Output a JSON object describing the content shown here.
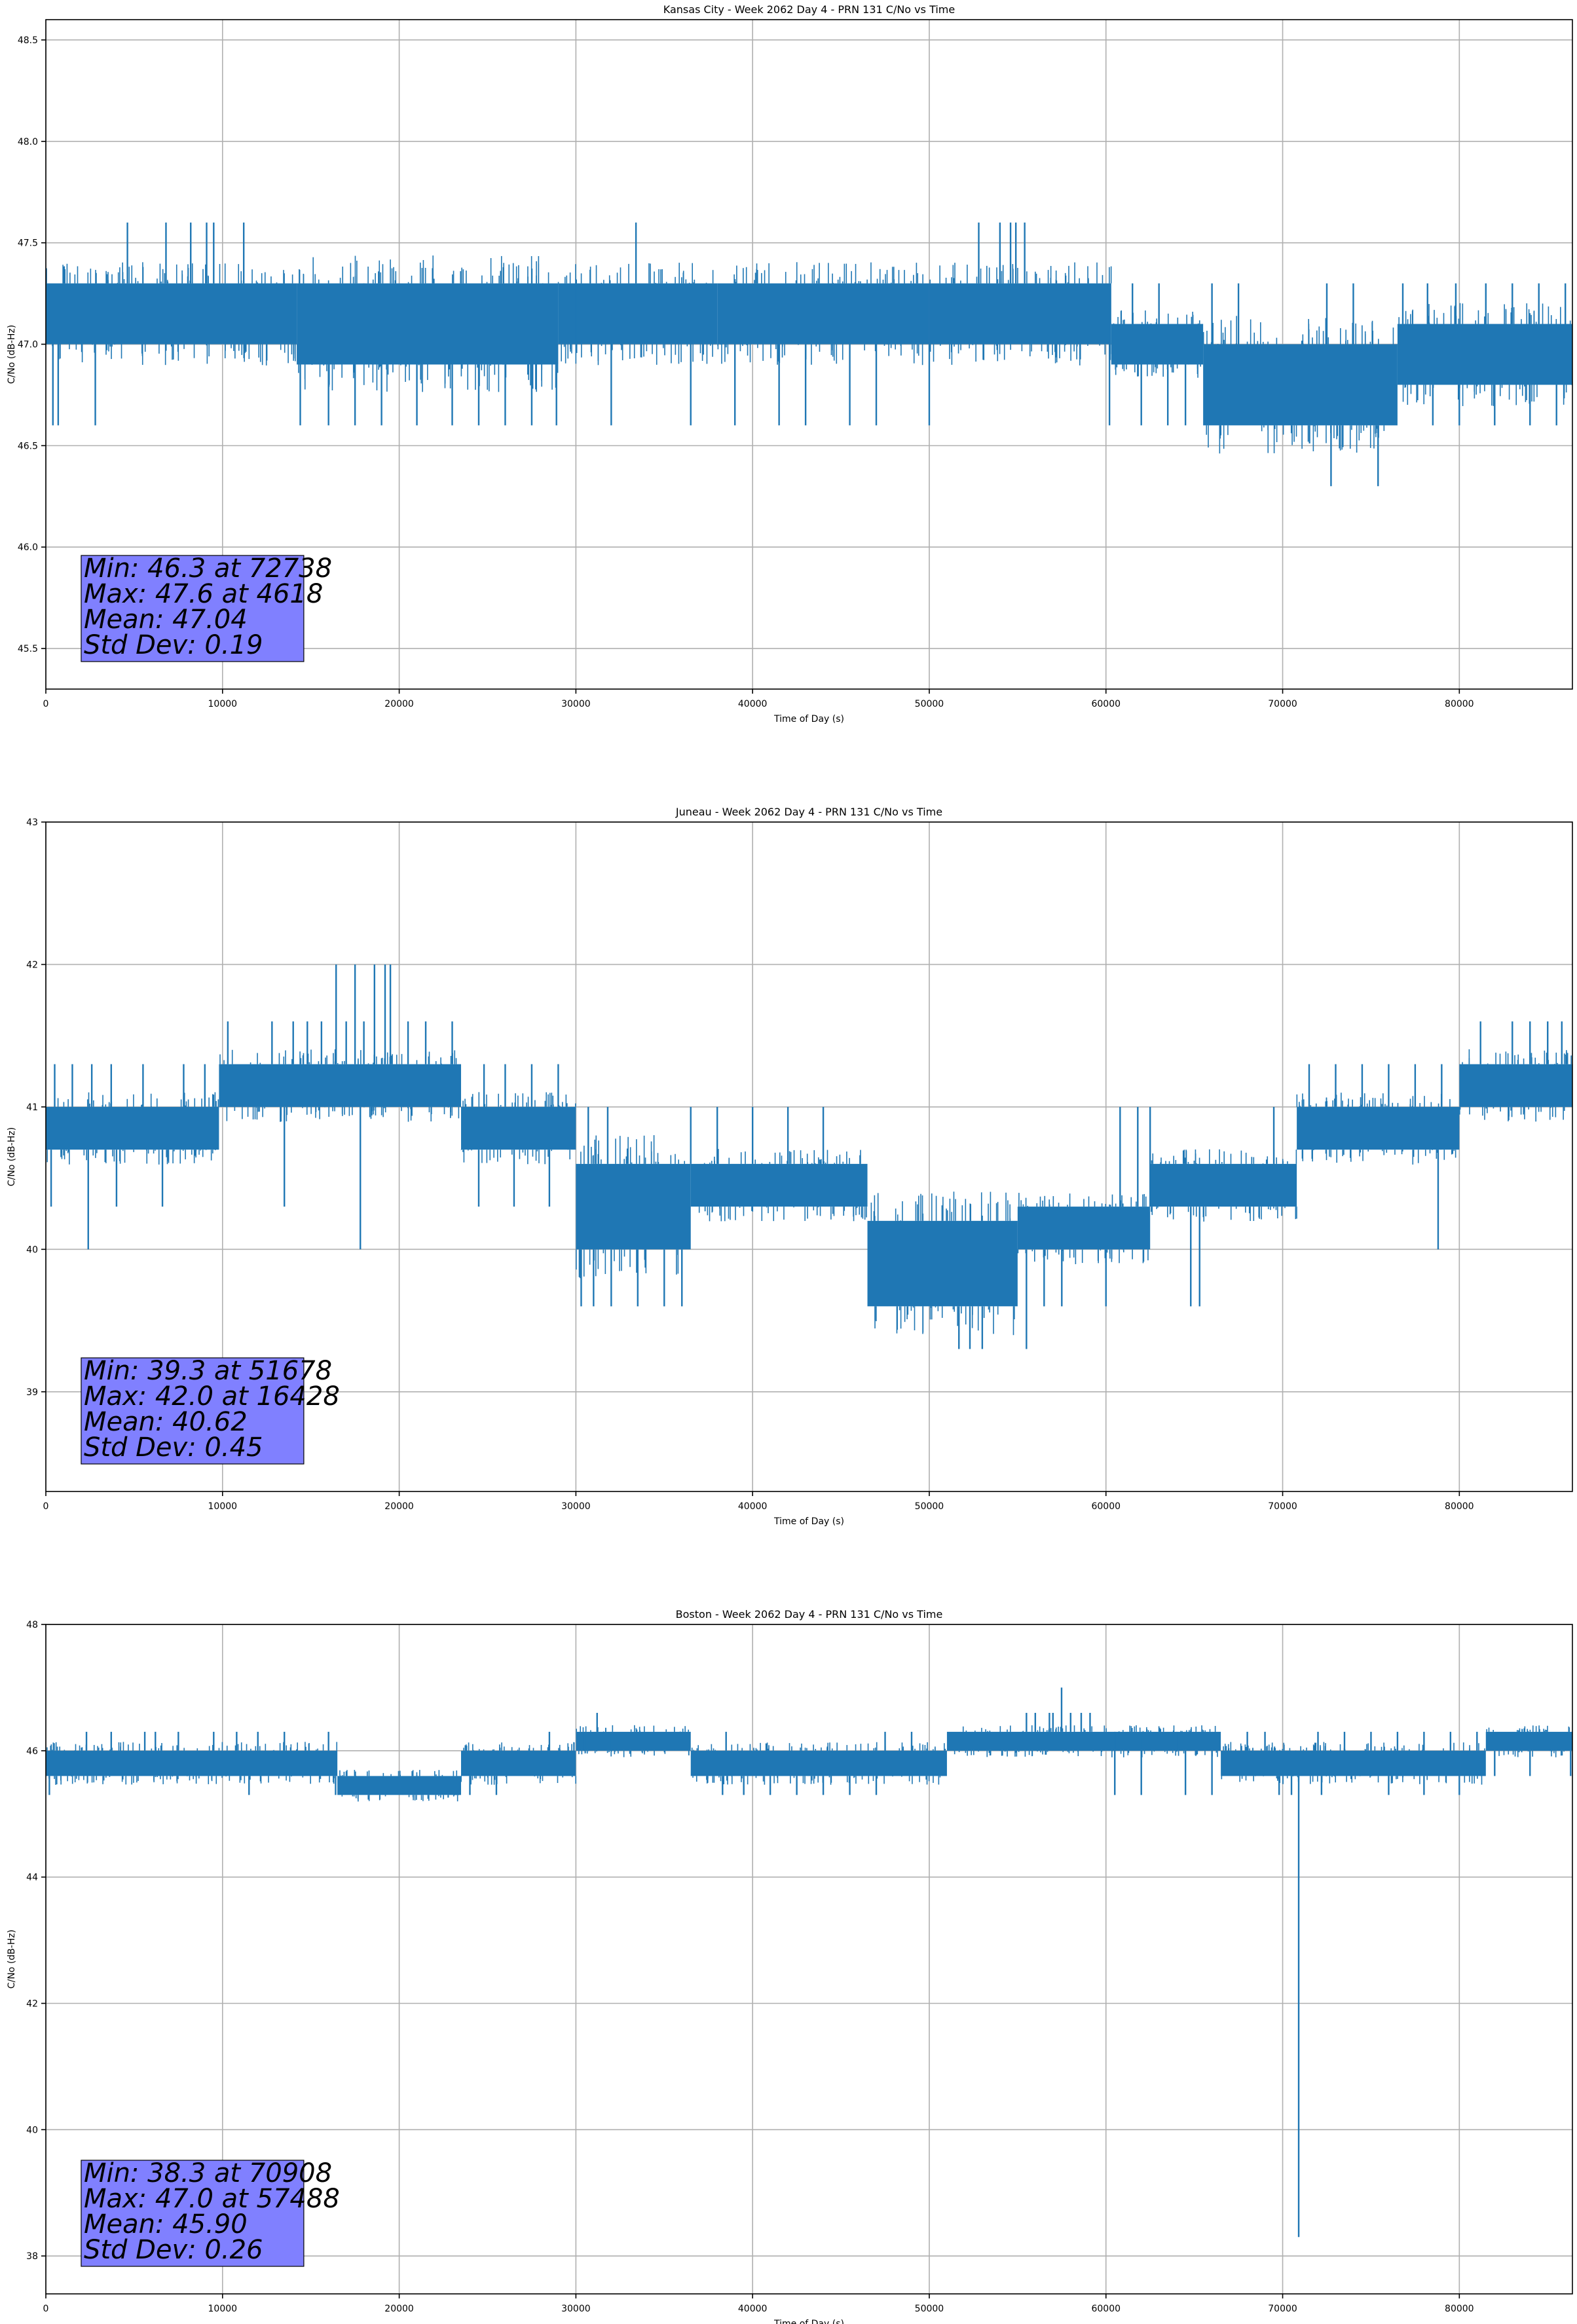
{
  "chart_data": [
    {
      "type": "line",
      "title": "Kansas City - Week 2062 Day 4 - PRN 131 C/No vs Time",
      "xlabel": "Time of Day (s)",
      "ylabel": "C/No (dB-Hz)",
      "xlim": [
        0,
        86400
      ],
      "ylim": [
        45.3,
        48.6
      ],
      "xticks": [
        0,
        10000,
        20000,
        30000,
        40000,
        50000,
        60000,
        70000,
        80000
      ],
      "xtick_labels": [
        "0",
        "10000",
        "20000",
        "30000",
        "40000",
        "50000",
        "60000",
        "70000",
        "80000"
      ],
      "yticks": [
        45.5,
        46.0,
        46.5,
        47.0,
        47.5,
        48.0,
        48.5
      ],
      "ytick_labels": [
        "45.5",
        "46.0",
        "46.5",
        "47.0",
        "47.5",
        "48.0",
        "48.5"
      ],
      "grid": true,
      "color": "#1f77b4",
      "band_segments": [
        {
          "x": [
            0,
            4300
          ],
          "range": [
            47.0,
            47.3
          ]
        },
        {
          "x": [
            4300,
            14200
          ],
          "range": [
            47.0,
            47.3
          ]
        },
        {
          "x": [
            14200,
            29000
          ],
          "range": [
            46.9,
            47.3
          ]
        },
        {
          "x": [
            29000,
            38000
          ],
          "range": [
            47.0,
            47.3
          ]
        },
        {
          "x": [
            38000,
            50000
          ],
          "range": [
            47.0,
            47.3
          ]
        },
        {
          "x": [
            50000,
            60300
          ],
          "range": [
            47.0,
            47.3
          ]
        },
        {
          "x": [
            60300,
            65500
          ],
          "range": [
            46.9,
            47.1
          ]
        },
        {
          "x": [
            65500,
            76500
          ],
          "range": [
            46.6,
            47.0
          ]
        },
        {
          "x": [
            76500,
            86400
          ],
          "range": [
            46.8,
            47.1
          ]
        }
      ],
      "excursions": [
        [
          4618,
          47.6
        ],
        [
          6800,
          47.6
        ],
        [
          8200,
          47.6
        ],
        [
          9100,
          47.6
        ],
        [
          9500,
          47.6
        ],
        [
          11200,
          47.6
        ],
        [
          33400,
          47.6
        ],
        [
          52800,
          47.6
        ],
        [
          54000,
          47.6
        ],
        [
          54600,
          47.6
        ],
        [
          54900,
          47.6
        ],
        [
          55400,
          47.6
        ],
        [
          72738,
          46.3
        ],
        [
          75400,
          46.3
        ],
        [
          400,
          46.6
        ],
        [
          700,
          46.6
        ],
        [
          2800,
          46.6
        ],
        [
          14400,
          46.6
        ],
        [
          16000,
          46.6
        ],
        [
          17500,
          46.6
        ],
        [
          19000,
          46.6
        ],
        [
          21000,
          46.6
        ],
        [
          23000,
          46.6
        ],
        [
          24500,
          46.6
        ],
        [
          26000,
          46.6
        ],
        [
          27500,
          46.6
        ],
        [
          28900,
          46.6
        ],
        [
          32000,
          46.6
        ],
        [
          36500,
          46.6
        ],
        [
          39000,
          46.6
        ],
        [
          41500,
          46.6
        ],
        [
          43000,
          46.6
        ],
        [
          45500,
          46.6
        ],
        [
          47000,
          46.6
        ],
        [
          50000,
          46.6
        ],
        [
          60200,
          46.6
        ],
        [
          62000,
          46.6
        ],
        [
          63500,
          46.6
        ],
        [
          64500,
          46.6
        ],
        [
          78500,
          46.6
        ],
        [
          80000,
          46.6
        ],
        [
          82000,
          46.6
        ],
        [
          84000,
          46.6
        ],
        [
          85500,
          46.6
        ],
        [
          18000,
          47.3
        ],
        [
          30000,
          47.3
        ],
        [
          61500,
          47.3
        ],
        [
          63000,
          47.3
        ],
        [
          66000,
          47.3
        ],
        [
          67500,
          47.3
        ],
        [
          72500,
          47.3
        ],
        [
          74000,
          47.3
        ],
        [
          76800,
          47.3
        ],
        [
          78200,
          47.3
        ],
        [
          79800,
          47.3
        ],
        [
          81500,
          47.3
        ],
        [
          83000,
          47.3
        ],
        [
          84500,
          47.3
        ],
        [
          86000,
          47.3
        ]
      ],
      "stats": {
        "min": "Min: 46.3 at 72738",
        "max": "Max: 47.6 at 4618",
        "mean": "Mean: 47.04",
        "std": "Std Dev: 0.19"
      }
    },
    {
      "type": "line",
      "title": "Juneau - Week 2062 Day 4 - PRN 131 C/No vs Time",
      "xlabel": "Time of Day (s)",
      "ylabel": "C/No (dB-Hz)",
      "xlim": [
        0,
        86400
      ],
      "ylim": [
        38.3,
        43.0
      ],
      "xticks": [
        0,
        10000,
        20000,
        30000,
        40000,
        50000,
        60000,
        70000,
        80000
      ],
      "xtick_labels": [
        "0",
        "10000",
        "20000",
        "30000",
        "40000",
        "50000",
        "60000",
        "70000",
        "80000"
      ],
      "yticks": [
        39,
        40,
        41,
        42,
        43
      ],
      "ytick_labels": [
        "39",
        "40",
        "41",
        "42",
        "43"
      ],
      "grid": true,
      "color": "#1f77b4",
      "band_segments": [
        {
          "x": [
            0,
            9800
          ],
          "range": [
            40.7,
            41.0
          ]
        },
        {
          "x": [
            9800,
            23500
          ],
          "range": [
            41.0,
            41.3
          ]
        },
        {
          "x": [
            23500,
            30000
          ],
          "range": [
            40.7,
            41.0
          ]
        },
        {
          "x": [
            30000,
            36500
          ],
          "range": [
            40.0,
            40.6
          ]
        },
        {
          "x": [
            36500,
            46500
          ],
          "range": [
            40.3,
            40.6
          ]
        },
        {
          "x": [
            46500,
            55000
          ],
          "range": [
            39.6,
            40.2
          ]
        },
        {
          "x": [
            55000,
            62500
          ],
          "range": [
            40.0,
            40.3
          ]
        },
        {
          "x": [
            62500,
            70800
          ],
          "range": [
            40.3,
            40.6
          ]
        },
        {
          "x": [
            70800,
            80000
          ],
          "range": [
            40.7,
            41.0
          ]
        },
        {
          "x": [
            80000,
            86400
          ],
          "range": [
            41.0,
            41.3
          ]
        }
      ],
      "excursions": [
        [
          16428,
          42.0
        ],
        [
          17500,
          42.0
        ],
        [
          18600,
          42.0
        ],
        [
          19200,
          42.0
        ],
        [
          19500,
          42.0
        ],
        [
          15600,
          41.6
        ],
        [
          17000,
          41.6
        ],
        [
          18000,
          41.6
        ],
        [
          20500,
          41.6
        ],
        [
          21500,
          41.6
        ],
        [
          23000,
          41.6
        ],
        [
          10300,
          41.6
        ],
        [
          12800,
          41.6
        ],
        [
          14000,
          41.6
        ],
        [
          14800,
          41.6
        ],
        [
          81200,
          41.6
        ],
        [
          83000,
          41.6
        ],
        [
          84000,
          41.6
        ],
        [
          85000,
          41.6
        ],
        [
          85800,
          41.6
        ],
        [
          2400,
          40.0
        ],
        [
          17800,
          40.0
        ],
        [
          78800,
          40.0
        ],
        [
          300,
          40.3
        ],
        [
          4000,
          40.3
        ],
        [
          6600,
          40.3
        ],
        [
          13500,
          40.3
        ],
        [
          24500,
          40.3
        ],
        [
          26500,
          40.3
        ],
        [
          28500,
          40.3
        ],
        [
          30300,
          39.6
        ],
        [
          31000,
          39.6
        ],
        [
          32000,
          39.6
        ],
        [
          33500,
          39.6
        ],
        [
          35000,
          39.6
        ],
        [
          36000,
          39.6
        ],
        [
          51678,
          39.3
        ],
        [
          52300,
          39.3
        ],
        [
          53000,
          39.3
        ],
        [
          55500,
          39.3
        ],
        [
          47000,
          39.6
        ],
        [
          48000,
          39.6
        ],
        [
          49500,
          39.6
        ],
        [
          56500,
          39.6
        ],
        [
          57500,
          39.6
        ],
        [
          64800,
          39.6
        ],
        [
          65300,
          39.6
        ],
        [
          60000,
          39.6
        ],
        [
          33800,
          40.6
        ],
        [
          36500,
          41.0
        ],
        [
          38000,
          41.0
        ],
        [
          40000,
          41.0
        ],
        [
          42000,
          41.0
        ],
        [
          44000,
          41.0
        ],
        [
          60800,
          41.0
        ],
        [
          61800,
          41.0
        ],
        [
          62500,
          41.0
        ],
        [
          69500,
          41.0
        ],
        [
          30700,
          41.0
        ],
        [
          31800,
          41.0
        ],
        [
          500,
          41.3
        ],
        [
          1500,
          41.3
        ],
        [
          2600,
          41.3
        ],
        [
          3700,
          41.3
        ],
        [
          5500,
          41.3
        ],
        [
          7800,
          41.3
        ],
        [
          9000,
          41.3
        ],
        [
          24800,
          41.3
        ],
        [
          26000,
          41.3
        ],
        [
          27500,
          41.3
        ],
        [
          29000,
          41.3
        ],
        [
          71500,
          41.3
        ],
        [
          73000,
          41.3
        ],
        [
          74500,
          41.3
        ],
        [
          76000,
          41.3
        ],
        [
          77500,
          41.3
        ],
        [
          79000,
          41.3
        ]
      ],
      "stats": {
        "min": "Min: 39.3 at 51678",
        "max": "Max: 42.0 at 16428",
        "mean": "Mean: 40.62",
        "std": "Std Dev: 0.45"
      }
    },
    {
      "type": "line",
      "title": "Boston - Week 2062 Day 4 - PRN 131 C/No vs Time",
      "xlabel": "Time of Day (s)",
      "ylabel": "C/No (dB-Hz)",
      "xlim": [
        0,
        86400
      ],
      "ylim": [
        37.4,
        48.0
      ],
      "xticks": [
        0,
        10000,
        20000,
        30000,
        40000,
        50000,
        60000,
        70000,
        80000
      ],
      "xtick_labels": [
        "0",
        "10000",
        "20000",
        "30000",
        "40000",
        "50000",
        "60000",
        "70000",
        "80000"
      ],
      "yticks": [
        38,
        40,
        42,
        44,
        46,
        48
      ],
      "ytick_labels": [
        "38",
        "40",
        "42",
        "44",
        "46",
        "48"
      ],
      "grid": true,
      "color": "#1f77b4",
      "band_segments": [
        {
          "x": [
            0,
            16500
          ],
          "range": [
            45.6,
            46.0
          ]
        },
        {
          "x": [
            16500,
            23500
          ],
          "range": [
            45.3,
            45.6
          ]
        },
        {
          "x": [
            23500,
            30000
          ],
          "range": [
            45.6,
            46.0
          ]
        },
        {
          "x": [
            30000,
            36500
          ],
          "range": [
            46.0,
            46.3
          ]
        },
        {
          "x": [
            36500,
            51000
          ],
          "range": [
            45.6,
            46.0
          ]
        },
        {
          "x": [
            51000,
            66500
          ],
          "range": [
            46.0,
            46.3
          ]
        },
        {
          "x": [
            66500,
            81500
          ],
          "range": [
            45.6,
            46.0
          ]
        },
        {
          "x": [
            81500,
            86400
          ],
          "range": [
            46.0,
            46.3
          ]
        }
      ],
      "excursions": [
        [
          70908,
          38.3
        ],
        [
          57488,
          47.0
        ],
        [
          55500,
          46.6
        ],
        [
          56000,
          46.6
        ],
        [
          56800,
          46.6
        ],
        [
          57000,
          46.6
        ],
        [
          58000,
          46.6
        ],
        [
          58600,
          46.6
        ],
        [
          59100,
          46.6
        ],
        [
          31200,
          46.6
        ],
        [
          200,
          45.3
        ],
        [
          2300,
          46.3
        ],
        [
          3700,
          46.3
        ],
        [
          5600,
          46.3
        ],
        [
          6200,
          46.3
        ],
        [
          7500,
          46.3
        ],
        [
          9500,
          46.3
        ],
        [
          10800,
          46.3
        ],
        [
          12000,
          46.3
        ],
        [
          13500,
          46.3
        ],
        [
          16000,
          46.3
        ],
        [
          28500,
          46.3
        ],
        [
          30500,
          46.3
        ],
        [
          32000,
          46.3
        ],
        [
          38500,
          46.3
        ],
        [
          47500,
          46.3
        ],
        [
          49000,
          46.3
        ],
        [
          54000,
          46.3
        ],
        [
          60500,
          46.3
        ],
        [
          62000,
          46.3
        ],
        [
          64000,
          46.3
        ],
        [
          68000,
          46.3
        ],
        [
          69000,
          46.3
        ],
        [
          72000,
          46.3
        ],
        [
          73500,
          46.3
        ],
        [
          75000,
          46.3
        ],
        [
          76500,
          46.3
        ],
        [
          78000,
          46.3
        ],
        [
          79500,
          46.3
        ],
        [
          81000,
          46.3
        ],
        [
          11500,
          45.3
        ],
        [
          16400,
          45.3
        ],
        [
          17500,
          45.3
        ],
        [
          19500,
          45.3
        ],
        [
          21000,
          45.3
        ],
        [
          22500,
          45.3
        ],
        [
          24000,
          45.3
        ],
        [
          25500,
          45.3
        ],
        [
          38300,
          45.3
        ],
        [
          39500,
          45.3
        ],
        [
          41000,
          45.3
        ],
        [
          42500,
          45.3
        ],
        [
          44000,
          45.3
        ],
        [
          45500,
          45.3
        ],
        [
          47000,
          45.3
        ],
        [
          60500,
          45.3
        ],
        [
          62000,
          45.3
        ],
        [
          64500,
          45.3
        ],
        [
          66000,
          45.3
        ],
        [
          69800,
          45.3
        ],
        [
          70500,
          45.3
        ],
        [
          72200,
          45.3
        ],
        [
          76000,
          45.3
        ],
        [
          78000,
          45.3
        ],
        [
          80000,
          45.3
        ],
        [
          82000,
          45.6
        ],
        [
          84000,
          45.6
        ],
        [
          86300,
          45.6
        ]
      ],
      "stats": {
        "min": "Min: 38.3 at 70908",
        "max": "Max: 47.0 at 57488",
        "mean": "Mean: 45.90",
        "std": "Std Dev: 0.26"
      }
    }
  ]
}
